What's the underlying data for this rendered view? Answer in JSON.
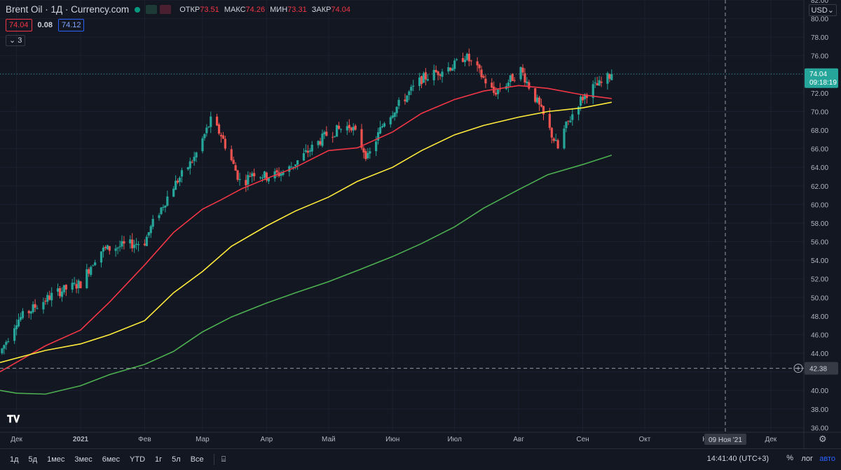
{
  "header": {
    "symbol_line": "Brent Oil · 1Д · Currency.com",
    "ohlc": [
      {
        "k": "ОТКР",
        "v": "73.51"
      },
      {
        "k": "МАКС",
        "v": "74.26"
      },
      {
        "k": "МИН",
        "v": "73.31"
      },
      {
        "k": "ЗАКР",
        "v": "74.04"
      }
    ],
    "bid": "74.04",
    "spread": "0.08",
    "ask": "74.12",
    "indicators_count": "3"
  },
  "currency": "USD",
  "price_label": {
    "value": "74.04",
    "countdown": "09:18:19"
  },
  "crosshair_label": "42.38",
  "crosshair_date": "09 Ноя '21",
  "bottom_bar": {
    "ranges": [
      "1д",
      "5д",
      "1мес",
      "3мес",
      "6мес",
      "YTD",
      "1г",
      "5л",
      "Все"
    ],
    "time": "14:41:40 (UTC+3)",
    "percent": "%",
    "log": "лог",
    "auto": "авто"
  },
  "colors": {
    "up": "#26a69a",
    "down": "#ef5350",
    "ma_fast": "#f23645",
    "ma_mid": "#ffeb3b",
    "ma_slow": "#4caf50",
    "accent": "#2962ff"
  },
  "chart_data": {
    "type": "line",
    "y_ticks": [
      36,
      38,
      40,
      42,
      44,
      46,
      48,
      50,
      52,
      54,
      56,
      58,
      60,
      62,
      64,
      66,
      68,
      70,
      72,
      74,
      76,
      78,
      80,
      82
    ],
    "ylim": [
      35.5,
      82
    ],
    "x_ticks": [
      {
        "label": "Дек",
        "date": "2020-12-01"
      },
      {
        "label": "2021",
        "date": "2021-01-01"
      },
      {
        "label": "Фев",
        "date": "2021-02-01"
      },
      {
        "label": "Мар",
        "date": "2021-03-01"
      },
      {
        "label": "Апр",
        "date": "2021-04-01"
      },
      {
        "label": "Май",
        "date": "2021-05-01"
      },
      {
        "label": "Июн",
        "date": "2021-06-01"
      },
      {
        "label": "Июл",
        "date": "2021-07-01"
      },
      {
        "label": "Авг",
        "date": "2021-08-01"
      },
      {
        "label": "Сен",
        "date": "2021-09-01"
      },
      {
        "label": "Окт",
        "date": "2021-10-01"
      },
      {
        "label": "Ноя",
        "date": "2021-11-01"
      },
      {
        "label": "Дек",
        "date": "2021-12-01"
      }
    ],
    "xlim": [
      "2020-11-23",
      "2021-12-17"
    ],
    "last_price": 74.04,
    "series": [
      {
        "kind": "close",
        "x": [
          "2020-11-23",
          "2020-12-01",
          "2020-12-10",
          "2020-12-20",
          "2021-01-01",
          "2021-01-10",
          "2021-01-20",
          "2021-02-01",
          "2021-02-05",
          "2021-02-15",
          "2021-02-25",
          "2021-03-05",
          "2021-03-10",
          "2021-03-20",
          "2021-03-25",
          "2021-04-01",
          "2021-04-10",
          "2021-04-20",
          "2021-04-30",
          "2021-05-05",
          "2021-05-12",
          "2021-05-20",
          "2021-05-28",
          "2021-06-05",
          "2021-06-15",
          "2021-06-25",
          "2021-07-01",
          "2021-07-06",
          "2021-07-12",
          "2021-07-20",
          "2021-07-26",
          "2021-08-02",
          "2021-08-10",
          "2021-08-20",
          "2021-08-23",
          "2021-08-30",
          "2021-09-05",
          "2021-09-10",
          "2021-09-15"
        ],
        "values": [
          44.0,
          47.5,
          49.0,
          50.5,
          51.5,
          55.0,
          55.5,
          56.0,
          58.0,
          62.0,
          65.0,
          69.0,
          67.5,
          62.0,
          63.5,
          63.0,
          63.5,
          65.5,
          67.5,
          68.0,
          68.5,
          65.0,
          69.0,
          71.0,
          73.5,
          74.5,
          75.0,
          76.0,
          74.5,
          72.0,
          73.0,
          74.5,
          71.0,
          66.0,
          68.0,
          71.0,
          72.5,
          73.0,
          74.04
        ]
      },
      {
        "kind": "ma",
        "name": "",
        "color": "#f23645",
        "x": [
          "2020-11-23",
          "2020-12-15",
          "2021-01-01",
          "2021-01-15",
          "2021-02-01",
          "2021-02-15",
          "2021-03-01",
          "2021-03-10",
          "2021-03-20",
          "2021-04-01",
          "2021-04-15",
          "2021-05-01",
          "2021-05-15",
          "2021-06-01",
          "2021-06-15",
          "2021-07-01",
          "2021-07-15",
          "2021-08-01",
          "2021-08-15",
          "2021-09-01",
          "2021-09-15"
        ],
        "values": [
          42.0,
          44.8,
          46.5,
          49.5,
          53.5,
          57.0,
          59.5,
          60.5,
          61.7,
          62.8,
          64.0,
          65.8,
          66.1,
          67.8,
          69.8,
          71.3,
          72.2,
          72.8,
          72.5,
          71.8,
          71.4
        ]
      },
      {
        "kind": "ma",
        "name": "",
        "color": "#ffeb3b",
        "x": [
          "2020-11-23",
          "2020-12-15",
          "2021-01-01",
          "2021-01-15",
          "2021-02-01",
          "2021-02-15",
          "2021-03-01",
          "2021-03-15",
          "2021-04-01",
          "2021-04-15",
          "2021-05-01",
          "2021-05-15",
          "2021-06-01",
          "2021-06-15",
          "2021-07-01",
          "2021-07-15",
          "2021-08-01",
          "2021-08-15",
          "2021-09-01",
          "2021-09-15"
        ],
        "values": [
          43.0,
          44.3,
          45.0,
          46.0,
          47.5,
          50.5,
          52.8,
          55.5,
          57.7,
          59.3,
          60.8,
          62.5,
          64.0,
          65.8,
          67.5,
          68.5,
          69.4,
          70.0,
          70.4,
          71.0
        ]
      },
      {
        "kind": "ma",
        "name": "",
        "color": "#4caf50",
        "x": [
          "2020-11-23",
          "2020-12-01",
          "2020-12-15",
          "2021-01-01",
          "2021-01-15",
          "2021-02-01",
          "2021-02-15",
          "2021-03-01",
          "2021-03-15",
          "2021-04-01",
          "2021-04-15",
          "2021-05-01",
          "2021-05-15",
          "2021-06-01",
          "2021-06-15",
          "2021-07-01",
          "2021-07-15",
          "2021-08-01",
          "2021-08-15",
          "2021-09-01",
          "2021-09-15"
        ],
        "values": [
          40.0,
          39.7,
          39.6,
          40.5,
          41.7,
          42.8,
          44.2,
          46.3,
          47.9,
          49.4,
          50.5,
          51.7,
          52.9,
          54.4,
          55.8,
          57.6,
          59.6,
          61.6,
          63.2,
          64.3,
          65.3
        ]
      }
    ]
  }
}
